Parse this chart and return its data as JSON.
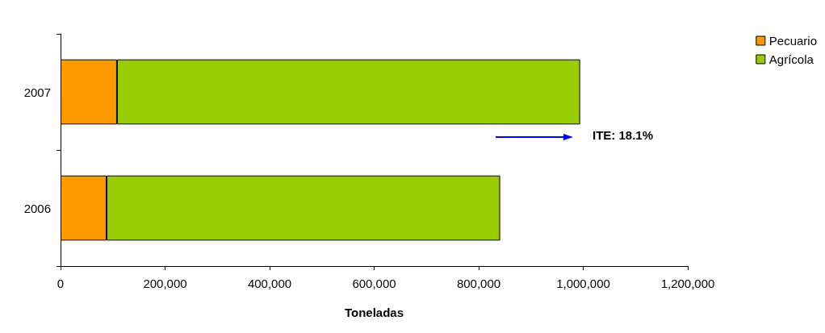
{
  "chart_data": {
    "type": "bar",
    "orientation": "horizontal",
    "stacked": true,
    "xlabel": "Toneladas",
    "categories": [
      "2007",
      "2006"
    ],
    "series": [
      {
        "name": "Pecuario",
        "color": "#ff9900",
        "values": [
          108000,
          88000
        ]
      },
      {
        "name": "Agrícola",
        "color": "#99cc00",
        "values": [
          886000,
          753000
        ]
      }
    ],
    "xlim": [
      0,
      1200000
    ],
    "xticks": [
      {
        "value": 0,
        "label": "0"
      },
      {
        "value": 200000,
        "label": "200,000"
      },
      {
        "value": 400000,
        "label": "400,000"
      },
      {
        "value": 600000,
        "label": "600,000"
      },
      {
        "value": 800000,
        "label": "800,000"
      },
      {
        "value": 1000000,
        "label": "1,000,000"
      },
      {
        "value": 1200000,
        "label": "1,200,000"
      }
    ],
    "annotations": [
      "ITE: 18.1%"
    ],
    "legend": "right",
    "grid": false
  }
}
